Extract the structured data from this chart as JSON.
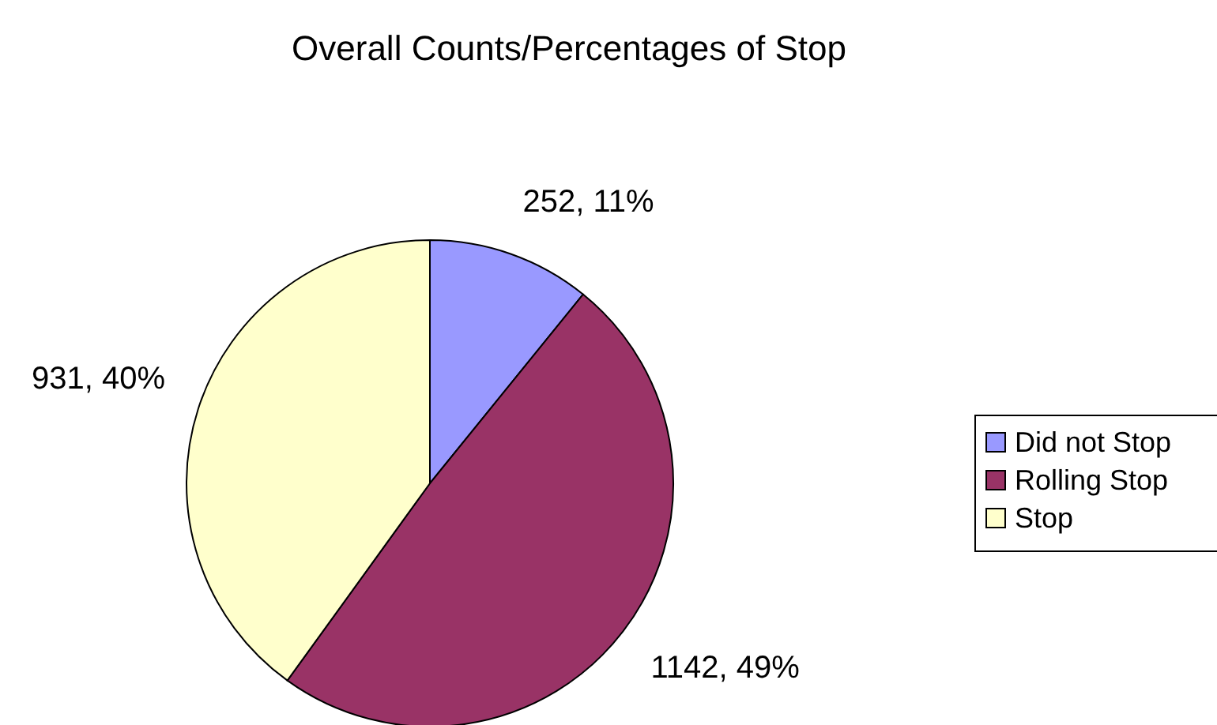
{
  "chart_data": {
    "type": "pie",
    "title": "Overall Counts/Percentages of Stop",
    "categories": [
      "Did not Stop",
      "Rolling Stop",
      "Stop"
    ],
    "values": [
      252,
      1142,
      931
    ],
    "colors": [
      "#9999ff",
      "#993366",
      "#ffffcc"
    ],
    "value_labels": [
      "252, 11%",
      "1142, 49%",
      "931, 40%"
    ],
    "legend": "right"
  }
}
